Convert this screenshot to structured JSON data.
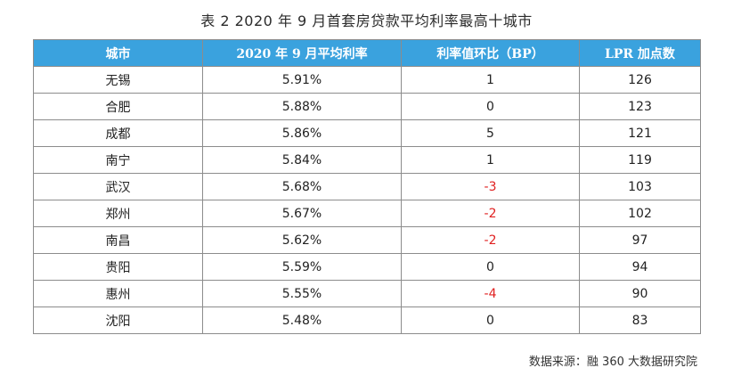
{
  "caption": "表 2 2020 年 9 月首套房贷款平均利率最高十城市",
  "table": {
    "headers": [
      "城市",
      "2020 年 9 月平均利率",
      "利率值环比（BP）",
      "LPR 加点数"
    ],
    "rows": [
      {
        "city": "无锡",
        "rate": "5.91%",
        "change": "1",
        "lpr": "126"
      },
      {
        "city": "合肥",
        "rate": "5.88%",
        "change": "0",
        "lpr": "123"
      },
      {
        "city": "成都",
        "rate": "5.86%",
        "change": "5",
        "lpr": "121"
      },
      {
        "city": "南宁",
        "rate": "5.84%",
        "change": "1",
        "lpr": "119"
      },
      {
        "city": "武汉",
        "rate": "5.68%",
        "change": "-3",
        "lpr": "103"
      },
      {
        "city": "郑州",
        "rate": "5.67%",
        "change": "-2",
        "lpr": "102"
      },
      {
        "city": "南昌",
        "rate": "5.62%",
        "change": "-2",
        "lpr": "97"
      },
      {
        "city": "贵阳",
        "rate": "5.59%",
        "change": "0",
        "lpr": "94"
      },
      {
        "city": "惠州",
        "rate": "5.55%",
        "change": "-4",
        "lpr": "90"
      },
      {
        "city": "沈阳",
        "rate": "5.48%",
        "change": "0",
        "lpr": "83"
      }
    ]
  },
  "source": "数据来源：融 360 大数据研究院",
  "colors": {
    "header_bg": "#3aa2de",
    "negative": "#e02020"
  }
}
